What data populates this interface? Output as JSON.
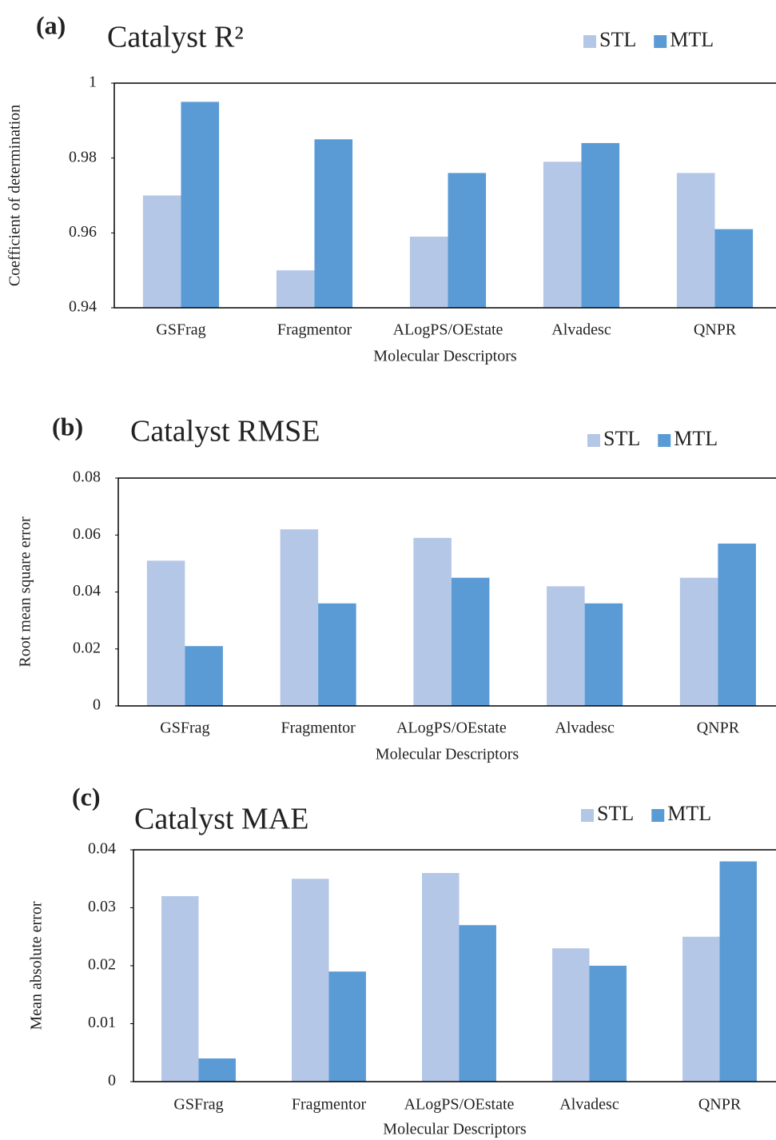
{
  "chart_data": [
    {
      "type": "bar",
      "panel_label": "(a)",
      "title": "Catalyst R²",
      "x_label": "Molecular Descriptors",
      "y_label": "Coefficient of determination",
      "categories": [
        "GSFrag",
        "Fragmentor",
        "ALogPS/OEstate",
        "Alvadesc",
        "QNPR"
      ],
      "series": [
        {
          "name": "STL",
          "color": "#b4c7e7",
          "values": [
            0.97,
            0.95,
            0.959,
            0.979,
            0.976
          ]
        },
        {
          "name": "MTL",
          "color": "#5b9bd5",
          "values": [
            0.995,
            0.985,
            0.976,
            0.984,
            0.961
          ]
        }
      ],
      "ylim": [
        0.94,
        1
      ],
      "yticks": [
        0.94,
        0.96,
        0.98,
        1
      ],
      "grid": false,
      "legend": "top-right"
    },
    {
      "type": "bar",
      "panel_label": "(b)",
      "title": "Catalyst RMSE",
      "x_label": "Molecular Descriptors",
      "y_label": "Root mean square error",
      "categories": [
        "GSFrag",
        "Fragmentor",
        "ALogPS/OEstate",
        "Alvadesc",
        "QNPR"
      ],
      "series": [
        {
          "name": "STL",
          "color": "#b4c7e7",
          "values": [
            0.051,
            0.062,
            0.059,
            0.042,
            0.045
          ]
        },
        {
          "name": "MTL",
          "color": "#5b9bd5",
          "values": [
            0.021,
            0.036,
            0.045,
            0.036,
            0.057
          ]
        }
      ],
      "ylim": [
        0,
        0.08
      ],
      "yticks": [
        0,
        0.02,
        0.04,
        0.06,
        0.08
      ],
      "grid": false,
      "legend": "top-right"
    },
    {
      "type": "bar",
      "panel_label": "(c)",
      "title": "Catalyst MAE",
      "x_label": "Molecular Descriptors",
      "y_label": "Mean absolute error",
      "categories": [
        "GSFrag",
        "Fragmentor",
        "ALogPS/OEstate",
        "Alvadesc",
        "QNPR"
      ],
      "series": [
        {
          "name": "STL",
          "color": "#b4c7e7",
          "values": [
            0.032,
            0.035,
            0.036,
            0.023,
            0.025
          ]
        },
        {
          "name": "MTL",
          "color": "#5b9bd5",
          "values": [
            0.004,
            0.019,
            0.027,
            0.02,
            0.038
          ]
        }
      ],
      "ylim": [
        0,
        0.04
      ],
      "yticks": [
        0,
        0.01,
        0.02,
        0.03,
        0.04
      ],
      "grid": false,
      "legend": "top-right"
    }
  ]
}
